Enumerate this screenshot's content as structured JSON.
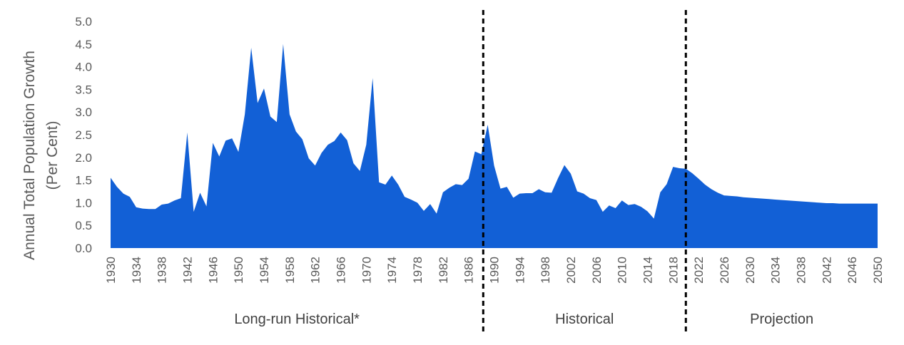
{
  "chart_data": {
    "type": "area",
    "title": "",
    "xlabel": "",
    "ylabel": [
      "Annual Total Population Growth",
      "(Per Cent)"
    ],
    "ylim": [
      0,
      5
    ],
    "yticks": [
      "0.0",
      "0.5",
      "1.0",
      "1.5",
      "2.0",
      "2.5",
      "3.0",
      "3.5",
      "4.0",
      "4.5",
      "5.0"
    ],
    "xlim": [
      1930,
      2050
    ],
    "xticks": [
      1930,
      1934,
      1938,
      1942,
      1946,
      1950,
      1954,
      1958,
      1962,
      1966,
      1970,
      1974,
      1978,
      1982,
      1986,
      1990,
      1994,
      1998,
      2002,
      2006,
      2010,
      2014,
      2018,
      2022,
      2026,
      2030,
      2034,
      2038,
      2042,
      2046,
      2050
    ],
    "grid": false,
    "fill_color": "#1260D6",
    "divider_years": [
      1988.3,
      2020
    ],
    "regions": [
      {
        "label": "Long-run Historical*",
        "from": 1930,
        "to": 1988.3
      },
      {
        "label": "Historical",
        "from": 1988.3,
        "to": 2020
      },
      {
        "label": "Projection",
        "from": 2020,
        "to": 2050
      }
    ],
    "x": [
      1930,
      1931,
      1932,
      1933,
      1934,
      1935,
      1936,
      1937,
      1938,
      1939,
      1940,
      1941,
      1942,
      1943,
      1944,
      1945,
      1946,
      1947,
      1948,
      1949,
      1950,
      1951,
      1952,
      1953,
      1954,
      1955,
      1956,
      1957,
      1958,
      1959,
      1960,
      1961,
      1962,
      1963,
      1964,
      1965,
      1966,
      1967,
      1968,
      1969,
      1970,
      1971,
      1972,
      1973,
      1974,
      1975,
      1976,
      1977,
      1978,
      1979,
      1980,
      1981,
      1982,
      1983,
      1984,
      1985,
      1986,
      1987,
      1988,
      1989,
      1990,
      1991,
      1992,
      1993,
      1994,
      1995,
      1996,
      1997,
      1998,
      1999,
      2000,
      2001,
      2002,
      2003,
      2004,
      2005,
      2006,
      2007,
      2008,
      2009,
      2010,
      2011,
      2012,
      2013,
      2014,
      2015,
      2016,
      2017,
      2018,
      2019,
      2020,
      2021,
      2022,
      2023,
      2024,
      2025,
      2026,
      2027,
      2028,
      2029,
      2030,
      2031,
      2032,
      2033,
      2034,
      2035,
      2036,
      2037,
      2038,
      2039,
      2040,
      2041,
      2042,
      2043,
      2044,
      2045,
      2046,
      2047,
      2048,
      2049,
      2050
    ],
    "values": [
      1.55,
      1.35,
      1.2,
      1.13,
      0.9,
      0.87,
      0.86,
      0.86,
      0.96,
      0.98,
      1.05,
      1.1,
      2.55,
      0.8,
      1.22,
      0.92,
      2.32,
      2.02,
      2.37,
      2.42,
      2.12,
      2.95,
      4.42,
      3.2,
      3.52,
      2.9,
      2.78,
      4.5,
      2.95,
      2.57,
      2.4,
      1.98,
      1.82,
      2.1,
      2.28,
      2.36,
      2.55,
      2.38,
      1.87,
      1.7,
      2.28,
      3.75,
      1.45,
      1.4,
      1.6,
      1.4,
      1.13,
      1.07,
      1.0,
      0.82,
      0.97,
      0.76,
      1.23,
      1.33,
      1.41,
      1.39,
      1.53,
      2.13,
      2.07,
      2.72,
      1.82,
      1.31,
      1.35,
      1.11,
      1.2,
      1.21,
      1.21,
      1.3,
      1.23,
      1.22,
      1.54,
      1.83,
      1.64,
      1.25,
      1.2,
      1.1,
      1.06,
      0.8,
      0.94,
      0.88,
      1.05,
      0.95,
      0.97,
      0.91,
      0.81,
      0.65,
      1.23,
      1.41,
      1.79,
      1.76,
      1.75,
      1.65,
      1.53,
      1.4,
      1.3,
      1.22,
      1.16,
      1.15,
      1.14,
      1.12,
      1.11,
      1.1,
      1.09,
      1.08,
      1.07,
      1.06,
      1.05,
      1.04,
      1.03,
      1.02,
      1.01,
      1.0,
      0.99,
      0.99,
      0.98,
      0.98,
      0.98,
      0.98,
      0.98,
      0.98,
      0.98
    ]
  }
}
